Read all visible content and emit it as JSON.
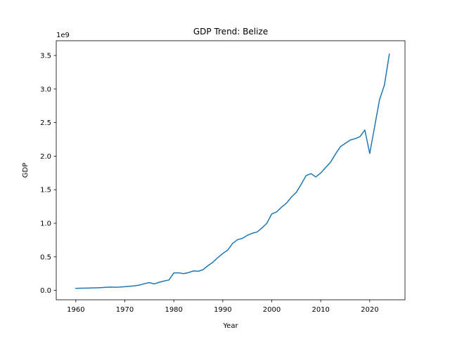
{
  "chart_data": {
    "type": "line",
    "title": "GDP Trend: Belize",
    "xlabel": "Year",
    "ylabel": "GDP",
    "y_multiplier_label": "1e9",
    "xlim": [
      1956,
      2027.2
    ],
    "ylim": [
      -0.14,
      3.72
    ],
    "x_ticks": [
      1960,
      1970,
      1980,
      1990,
      2000,
      2010,
      2020
    ],
    "y_ticks": [
      0.0,
      0.5,
      1.0,
      1.5,
      2.0,
      2.5,
      3.0,
      3.5
    ],
    "y_tick_labels": [
      "0.0",
      "0.5",
      "1.0",
      "1.5",
      "2.0",
      "2.5",
      "3.0",
      "3.5"
    ],
    "grid": false,
    "line_color": "#1f77b4",
    "series": [
      {
        "x": [
          1960,
          1961,
          1962,
          1963,
          1964,
          1965,
          1966,
          1967,
          1968,
          1969,
          1970,
          1971,
          1972,
          1973,
          1974,
          1975,
          1976,
          1977,
          1978,
          1979,
          1980,
          1981,
          1982,
          1983,
          1984,
          1985,
          1986,
          1987,
          1988,
          1989,
          1990,
          1991,
          1992,
          1993,
          1994,
          1995,
          1996,
          1997,
          1998,
          1999,
          2000,
          2001,
          2002,
          2003,
          2004,
          2005,
          2006,
          2007,
          2008,
          2009,
          2010,
          2011,
          2012,
          2013,
          2014,
          2015,
          2016,
          2017,
          2018,
          2019,
          2020,
          2021,
          2022,
          2023,
          2024
        ],
        "values": [
          0.03,
          0.032,
          0.034,
          0.036,
          0.038,
          0.041,
          0.045,
          0.049,
          0.047,
          0.05,
          0.055,
          0.061,
          0.068,
          0.08,
          0.1,
          0.116,
          0.097,
          0.12,
          0.14,
          0.155,
          0.26,
          0.262,
          0.25,
          0.265,
          0.29,
          0.285,
          0.31,
          0.37,
          0.42,
          0.49,
          0.55,
          0.6,
          0.7,
          0.755,
          0.775,
          0.82,
          0.85,
          0.87,
          0.93,
          1.0,
          1.14,
          1.17,
          1.24,
          1.3,
          1.39,
          1.46,
          1.58,
          1.71,
          1.74,
          1.69,
          1.75,
          1.83,
          1.91,
          2.03,
          2.14,
          2.19,
          2.24,
          2.26,
          2.29,
          2.39,
          2.04,
          2.44,
          2.84,
          3.06,
          3.52
        ]
      }
    ]
  }
}
